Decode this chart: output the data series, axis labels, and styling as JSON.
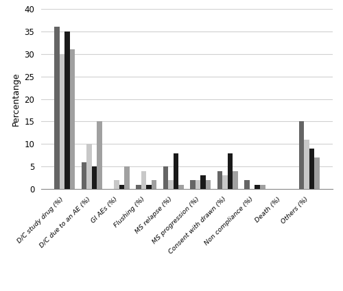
{
  "categories": [
    "D/C study drug (%)",
    "D/C due to an AE (%)",
    "GI AEs (%)",
    "Flushing (%)",
    "MS relapse (%)",
    "MS progression (%)",
    "Consent with drawn (%)",
    "Non compliance (%)",
    "Death (%)",
    "Others (%)"
  ],
  "series": {
    "CONFIRM Placebo": [
      36,
      6,
      0,
      1,
      5,
      2,
      4,
      2,
      0,
      15
    ],
    "CONFIRM DMF BID": [
      30,
      10,
      2,
      4,
      2,
      2,
      3,
      0,
      0,
      11
    ],
    "DEFINE Placebo": [
      35,
      5,
      1,
      1,
      8,
      3,
      8,
      1,
      0,
      9
    ],
    "DEFINE DMF BID": [
      31,
      15,
      5,
      2,
      1,
      2,
      4,
      1,
      0,
      7
    ]
  },
  "colors": {
    "CONFIRM Placebo": "#656565",
    "CONFIRM DMF BID": "#c8c8c8",
    "DEFINE Placebo": "#1a1a1a",
    "DEFINE DMF BID": "#a0a0a0"
  },
  "ylabel": "Percentange",
  "ylim": [
    0,
    40
  ],
  "yticks": [
    0,
    5,
    10,
    15,
    20,
    25,
    30,
    35,
    40
  ],
  "bar_width": 0.19,
  "background_color": "#ffffff",
  "grid_color": "#d0d0d0"
}
